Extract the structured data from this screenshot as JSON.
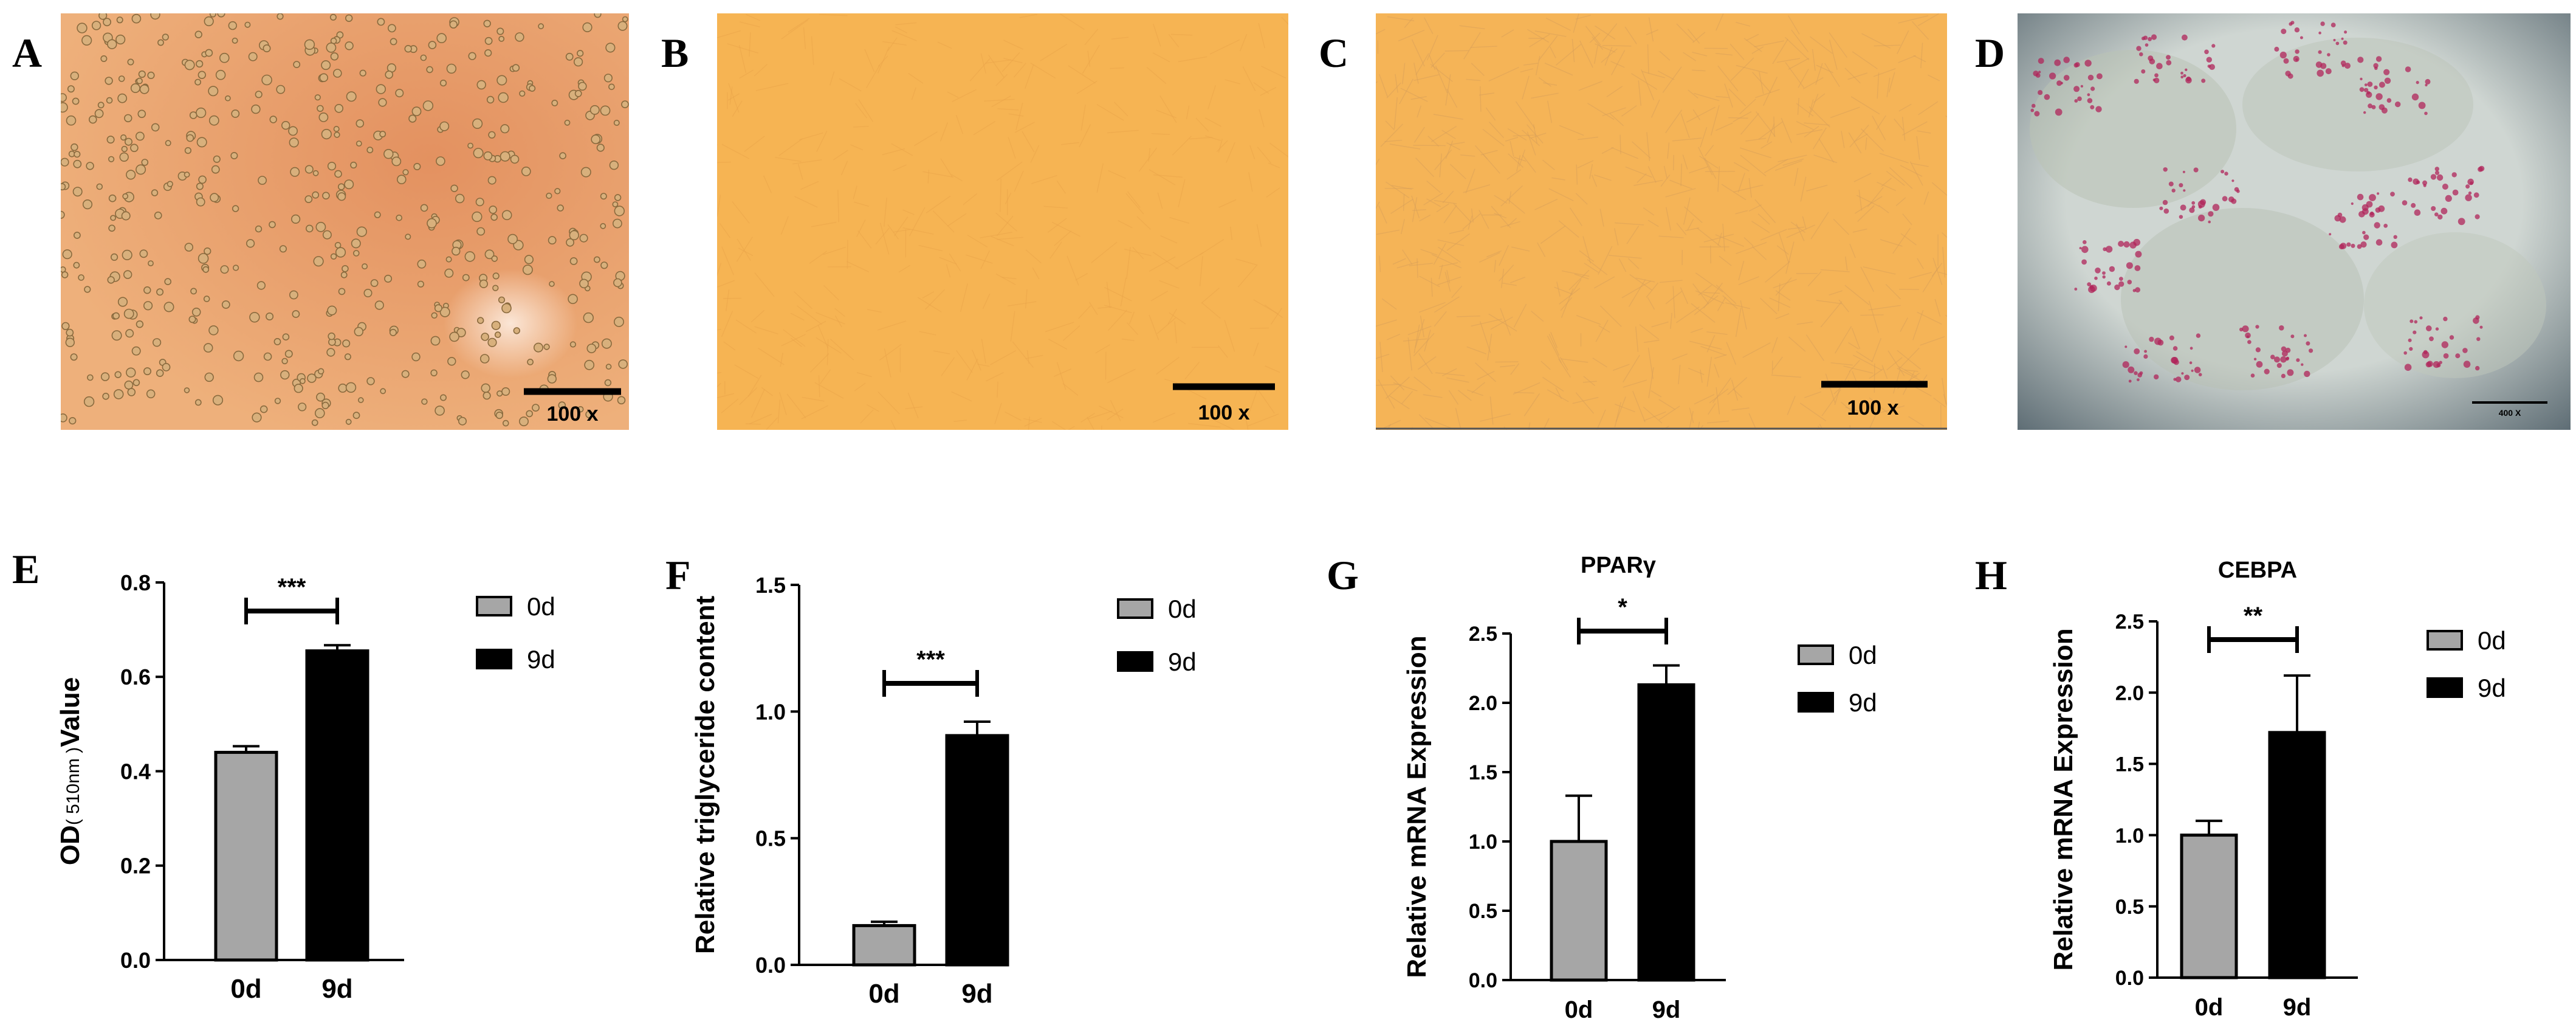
{
  "panels": {
    "a": "A",
    "b": "B",
    "c": "C",
    "d": "D",
    "e": "E",
    "f": "F",
    "g": "G",
    "h": "H"
  },
  "micrographs": [
    {
      "scale_text": "100 x"
    },
    {
      "scale_text": "100 x"
    },
    {
      "scale_text": "100 x"
    },
    {
      "scale_text": "400 X"
    }
  ],
  "colors": {
    "bar_0d": "#a6a6a6",
    "bar_9d": "#000000",
    "photo_a": "#e6a26c",
    "photo_b": "#f6b453",
    "photo_c": "#f5b457",
    "photo_d": "#c8cfcb",
    "stain": "#b0245a"
  },
  "chart_data": [
    {
      "type": "bar",
      "title": "",
      "ylabel_main": "OD",
      "ylabel_sub": "( 510nm )",
      "ylabel_tail": "Value",
      "categories": [
        "0d",
        "9d"
      ],
      "values": [
        0.44,
        0.655
      ],
      "errors": [
        0.013,
        0.012
      ],
      "ylim": [
        0,
        0.8
      ],
      "yticks": [
        "0.0",
        "0.2",
        "0.4",
        "0.6",
        "0.8"
      ],
      "significance": "***",
      "legend": [
        "0d",
        "9d"
      ],
      "legend_position": "right"
    },
    {
      "type": "bar",
      "title": "",
      "ylabel": "Relative triglyceride content",
      "categories": [
        "0d",
        "9d"
      ],
      "values": [
        0.155,
        0.905
      ],
      "errors": [
        0.015,
        0.055
      ],
      "ylim": [
        0,
        1.5
      ],
      "yticks": [
        "0.0",
        "0.5",
        "1.0",
        "1.5"
      ],
      "significance": "***",
      "legend": [
        "0d",
        "9d"
      ],
      "legend_position": "right"
    },
    {
      "type": "bar",
      "title": "PPARγ",
      "ylabel": "Relative mRNA Expression",
      "categories": [
        "0d",
        "9d"
      ],
      "values": [
        1.0,
        2.13
      ],
      "errors": [
        0.33,
        0.14
      ],
      "ylim": [
        0,
        2.5
      ],
      "yticks": [
        "0.0",
        "0.5",
        "1.0",
        "1.5",
        "2.0",
        "2.5"
      ],
      "significance": "*",
      "legend": [
        "0d",
        "9d"
      ],
      "legend_position": "right"
    },
    {
      "type": "bar",
      "title": "CEBPA",
      "ylabel": "Relative mRNA Expression",
      "categories": [
        "0d",
        "9d"
      ],
      "values": [
        1.0,
        1.72
      ],
      "errors": [
        0.1,
        0.4
      ],
      "ylim": [
        0,
        2.5
      ],
      "yticks": [
        "0.0",
        "0.5",
        "1.0",
        "1.5",
        "2.0",
        "2.5"
      ],
      "significance": "**",
      "legend": [
        "0d",
        "9d"
      ],
      "legend_position": "right"
    }
  ]
}
